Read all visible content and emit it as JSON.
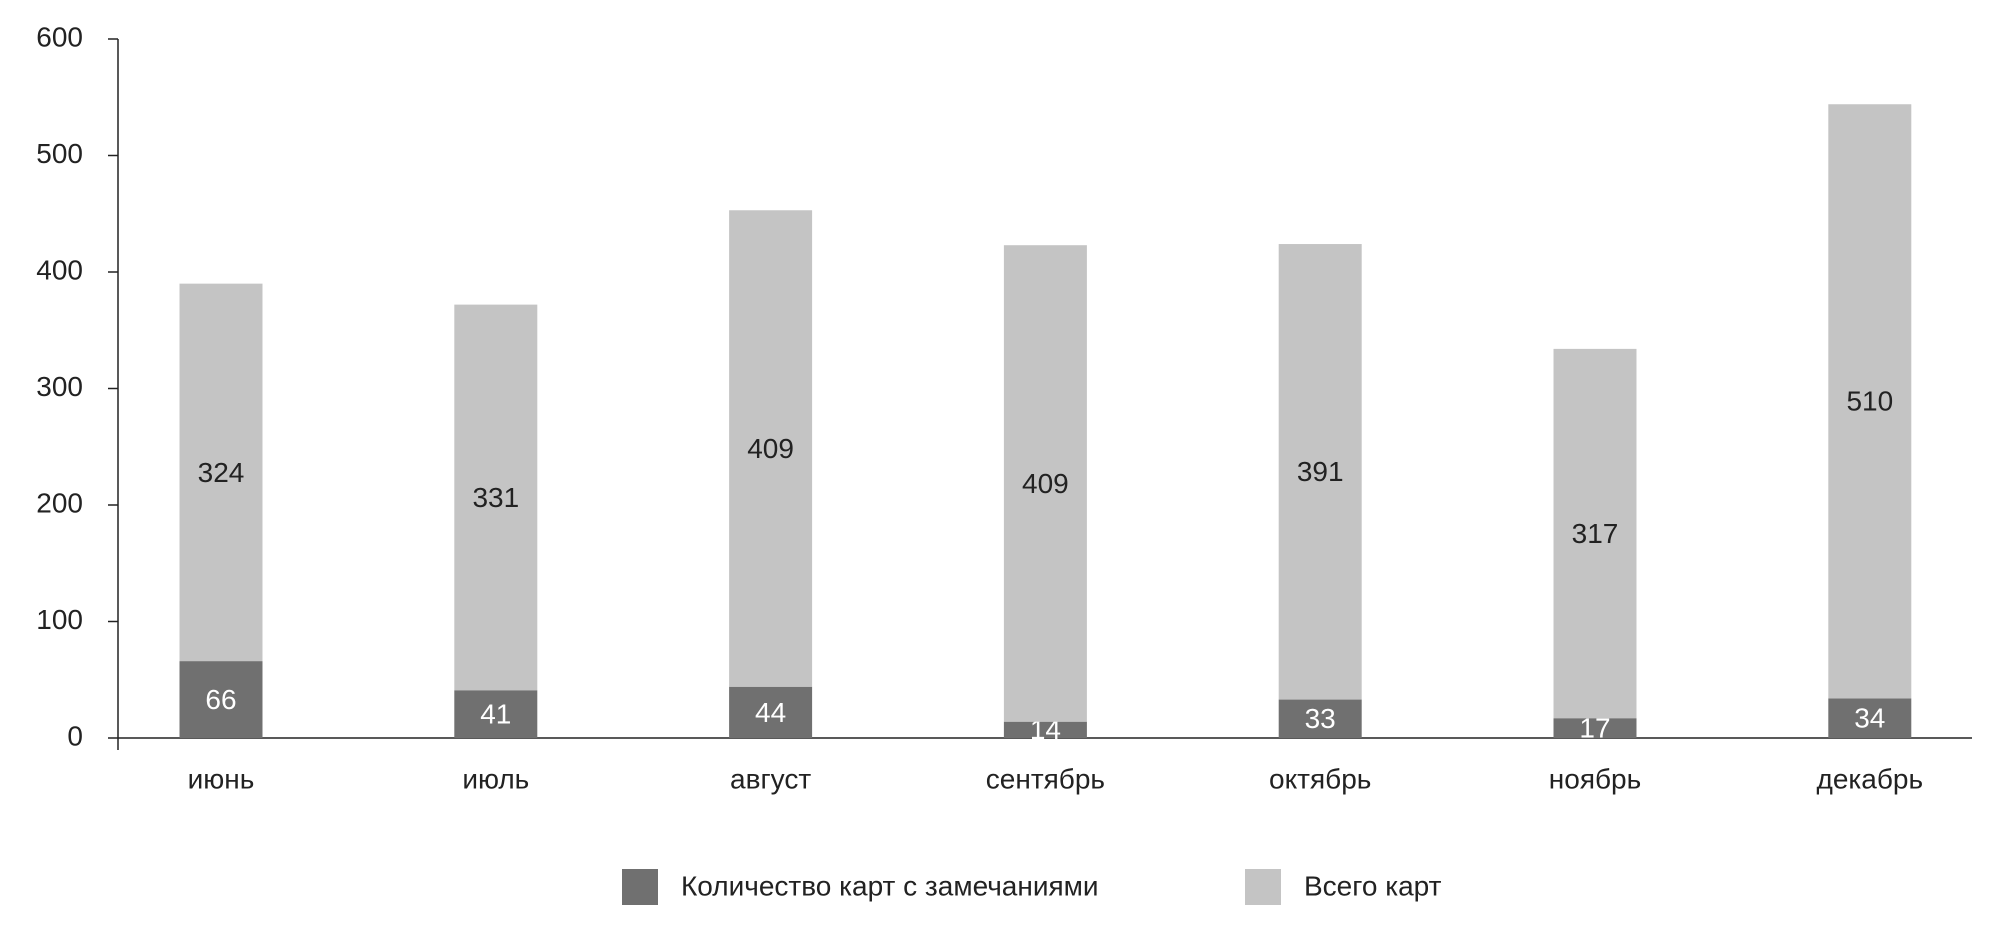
{
  "chart_data": {
    "type": "stacked_bar",
    "categories": [
      "июнь",
      "июль",
      "август",
      "сентябрь",
      "октябрь",
      "ноябрь",
      "декабрь"
    ],
    "series": [
      {
        "name": "Количество карт с замечаниями",
        "color": "#707070",
        "values": [
          66,
          41,
          44,
          14,
          33,
          17,
          34
        ]
      },
      {
        "name": "Всего карт",
        "color": "#c4c4c4",
        "values": [
          324,
          331,
          409,
          409,
          391,
          317,
          510
        ]
      }
    ],
    "ylim": [
      0,
      600
    ],
    "yticks": [
      0,
      100,
      200,
      300,
      400,
      500,
      600
    ],
    "grid": false,
    "legend": "bottom"
  }
}
